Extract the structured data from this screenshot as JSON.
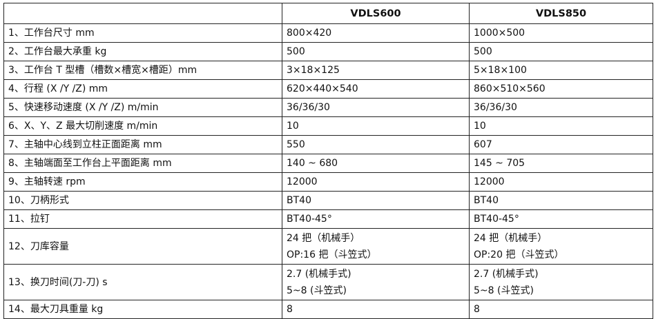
{
  "header": [
    "",
    "VDLS600",
    "VDLS850"
  ],
  "rows": [
    {
      "label": "1、工作台尺寸 mm",
      "a": [
        "800×420"
      ],
      "b": [
        "1000×500"
      ]
    },
    {
      "label": "2、工作台最大承重 kg",
      "a": [
        "500"
      ],
      "b": [
        "500"
      ]
    },
    {
      "label": "3、工作台 T 型槽（槽数×槽宽×槽距）mm",
      "a": [
        "3×18×125"
      ],
      "b": [
        "5×18×100"
      ]
    },
    {
      "label": "4、行程 (X /Y /Z) mm",
      "a": [
        "620×440×540"
      ],
      "b": [
        "860×510×560"
      ]
    },
    {
      "label": "5、快速移动速度 (X /Y /Z)  m/min",
      "a": [
        "36/36/30"
      ],
      "b": [
        "36/36/30"
      ]
    },
    {
      "label": "6、X、Y、Z 最大切削速度 m/min",
      "a": [
        "10"
      ],
      "b": [
        "10"
      ]
    },
    {
      "label": "7、主轴中心线到立柱正面距离 mm",
      "a": [
        "550"
      ],
      "b": [
        "607"
      ]
    },
    {
      "label": "8、主轴端面至工作台上平面距离 mm",
      "a": [
        "140 ~ 680"
      ],
      "b": [
        "145 ~ 705"
      ]
    },
    {
      "label": "9、主轴转速  rpm",
      "a": [
        "12000"
      ],
      "b": [
        "12000"
      ]
    },
    {
      "label": "10、刀柄形式",
      "a": [
        "BT40"
      ],
      "b": [
        "BT40"
      ]
    },
    {
      "label": "11、拉钉",
      "a": [
        "BT40-45°"
      ],
      "b": [
        "BT40-45°"
      ]
    },
    {
      "label": "12、刀库容量",
      "a": [
        "24 把（机械手）",
        "OP:16 把（斗笠式）"
      ],
      "b": [
        "24 把（机械手）",
        "OP:20 把（斗笠式）"
      ]
    },
    {
      "label": "13、换刀时间(刀-刀) s",
      "a": [
        "2.7 (机械手式)",
        "5~8 (斗笠式)"
      ],
      "b": [
        "2.7 (机械手式)",
        "5~8 (斗笠式)"
      ]
    },
    {
      "label": "14、最大刀具重量 kg",
      "a": [
        "8"
      ],
      "b": [
        "8"
      ]
    }
  ]
}
